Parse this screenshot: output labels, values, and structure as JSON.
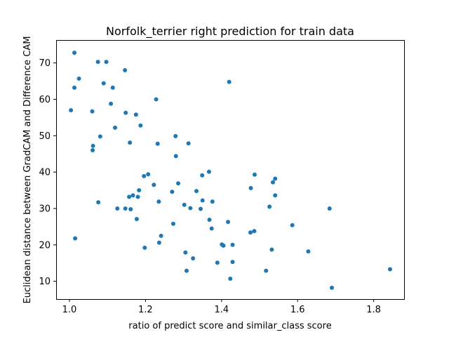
{
  "chart_data": {
    "type": "scatter",
    "title": "Norfolk_terrier right prediction for train data",
    "xlabel": "ratio of predict score and similar_class score",
    "ylabel": "Euclidean distance between GradCAM and Difference CAM",
    "xlim": [
      0.965,
      1.88
    ],
    "ylim": [
      5.1,
      76.3
    ],
    "xticks": [
      "1.0",
      "1.2",
      "1.4",
      "1.6",
      "1.8"
    ],
    "yticks": [
      "10",
      "20",
      "30",
      "40",
      "50",
      "60",
      "70"
    ],
    "grid": false,
    "point_color": "#1f77b4",
    "points": [
      [
        1.013,
        72.8
      ],
      [
        1.075,
        70.3
      ],
      [
        1.097,
        70.3
      ],
      [
        1.146,
        68.0
      ],
      [
        1.013,
        63.2
      ],
      [
        1.025,
        65.7
      ],
      [
        1.09,
        64.4
      ],
      [
        1.114,
        63.2
      ],
      [
        1.42,
        64.8
      ],
      [
        1.004,
        57.0
      ],
      [
        1.06,
        56.7
      ],
      [
        1.109,
        58.8
      ],
      [
        1.148,
        56.3
      ],
      [
        1.228,
        60.0
      ],
      [
        1.175,
        55.8
      ],
      [
        1.187,
        52.8
      ],
      [
        1.12,
        52.2
      ],
      [
        1.081,
        49.8
      ],
      [
        1.062,
        47.2
      ],
      [
        1.061,
        46.0
      ],
      [
        1.159,
        48.1
      ],
      [
        1.232,
        47.8
      ],
      [
        1.279,
        49.9
      ],
      [
        1.313,
        47.9
      ],
      [
        1.28,
        44.4
      ],
      [
        1.015,
        21.8
      ],
      [
        1.076,
        31.7
      ],
      [
        1.126,
        30.0
      ],
      [
        1.147,
        30.0
      ],
      [
        1.161,
        29.8
      ],
      [
        1.157,
        33.2
      ],
      [
        1.167,
        33.6
      ],
      [
        1.18,
        33.2
      ],
      [
        1.183,
        35.0
      ],
      [
        1.196,
        38.9
      ],
      [
        1.207,
        39.4
      ],
      [
        1.222,
        36.5
      ],
      [
        1.177,
        27.1
      ],
      [
        1.198,
        19.2
      ],
      [
        1.236,
        20.6
      ],
      [
        1.241,
        22.5
      ],
      [
        1.235,
        31.9
      ],
      [
        1.27,
        34.6
      ],
      [
        1.286,
        36.9
      ],
      [
        1.273,
        25.8
      ],
      [
        1.302,
        31.0
      ],
      [
        1.318,
        30.1
      ],
      [
        1.305,
        17.9
      ],
      [
        1.308,
        12.9
      ],
      [
        1.325,
        16.3
      ],
      [
        1.334,
        34.8
      ],
      [
        1.345,
        29.9
      ],
      [
        1.349,
        39.1
      ],
      [
        1.35,
        32.2
      ],
      [
        1.367,
        40.1
      ],
      [
        1.368,
        26.9
      ],
      [
        1.374,
        24.5
      ],
      [
        1.376,
        31.9
      ],
      [
        1.389,
        15.1
      ],
      [
        1.401,
        20.1
      ],
      [
        1.405,
        19.8
      ],
      [
        1.417,
        26.3
      ],
      [
        1.423,
        10.7
      ],
      [
        1.429,
        20.0
      ],
      [
        1.429,
        15.3
      ],
      [
        1.477,
        35.6
      ],
      [
        1.487,
        39.3
      ],
      [
        1.476,
        23.4
      ],
      [
        1.486,
        23.8
      ],
      [
        1.517,
        12.9
      ],
      [
        1.526,
        30.5
      ],
      [
        1.532,
        18.7
      ],
      [
        1.535,
        37.2
      ],
      [
        1.541,
        38.2
      ],
      [
        1.541,
        33.6
      ],
      [
        1.586,
        25.4
      ],
      [
        1.628,
        18.2
      ],
      [
        1.684,
        30.0
      ],
      [
        1.69,
        8.2
      ],
      [
        1.843,
        13.3
      ]
    ]
  }
}
